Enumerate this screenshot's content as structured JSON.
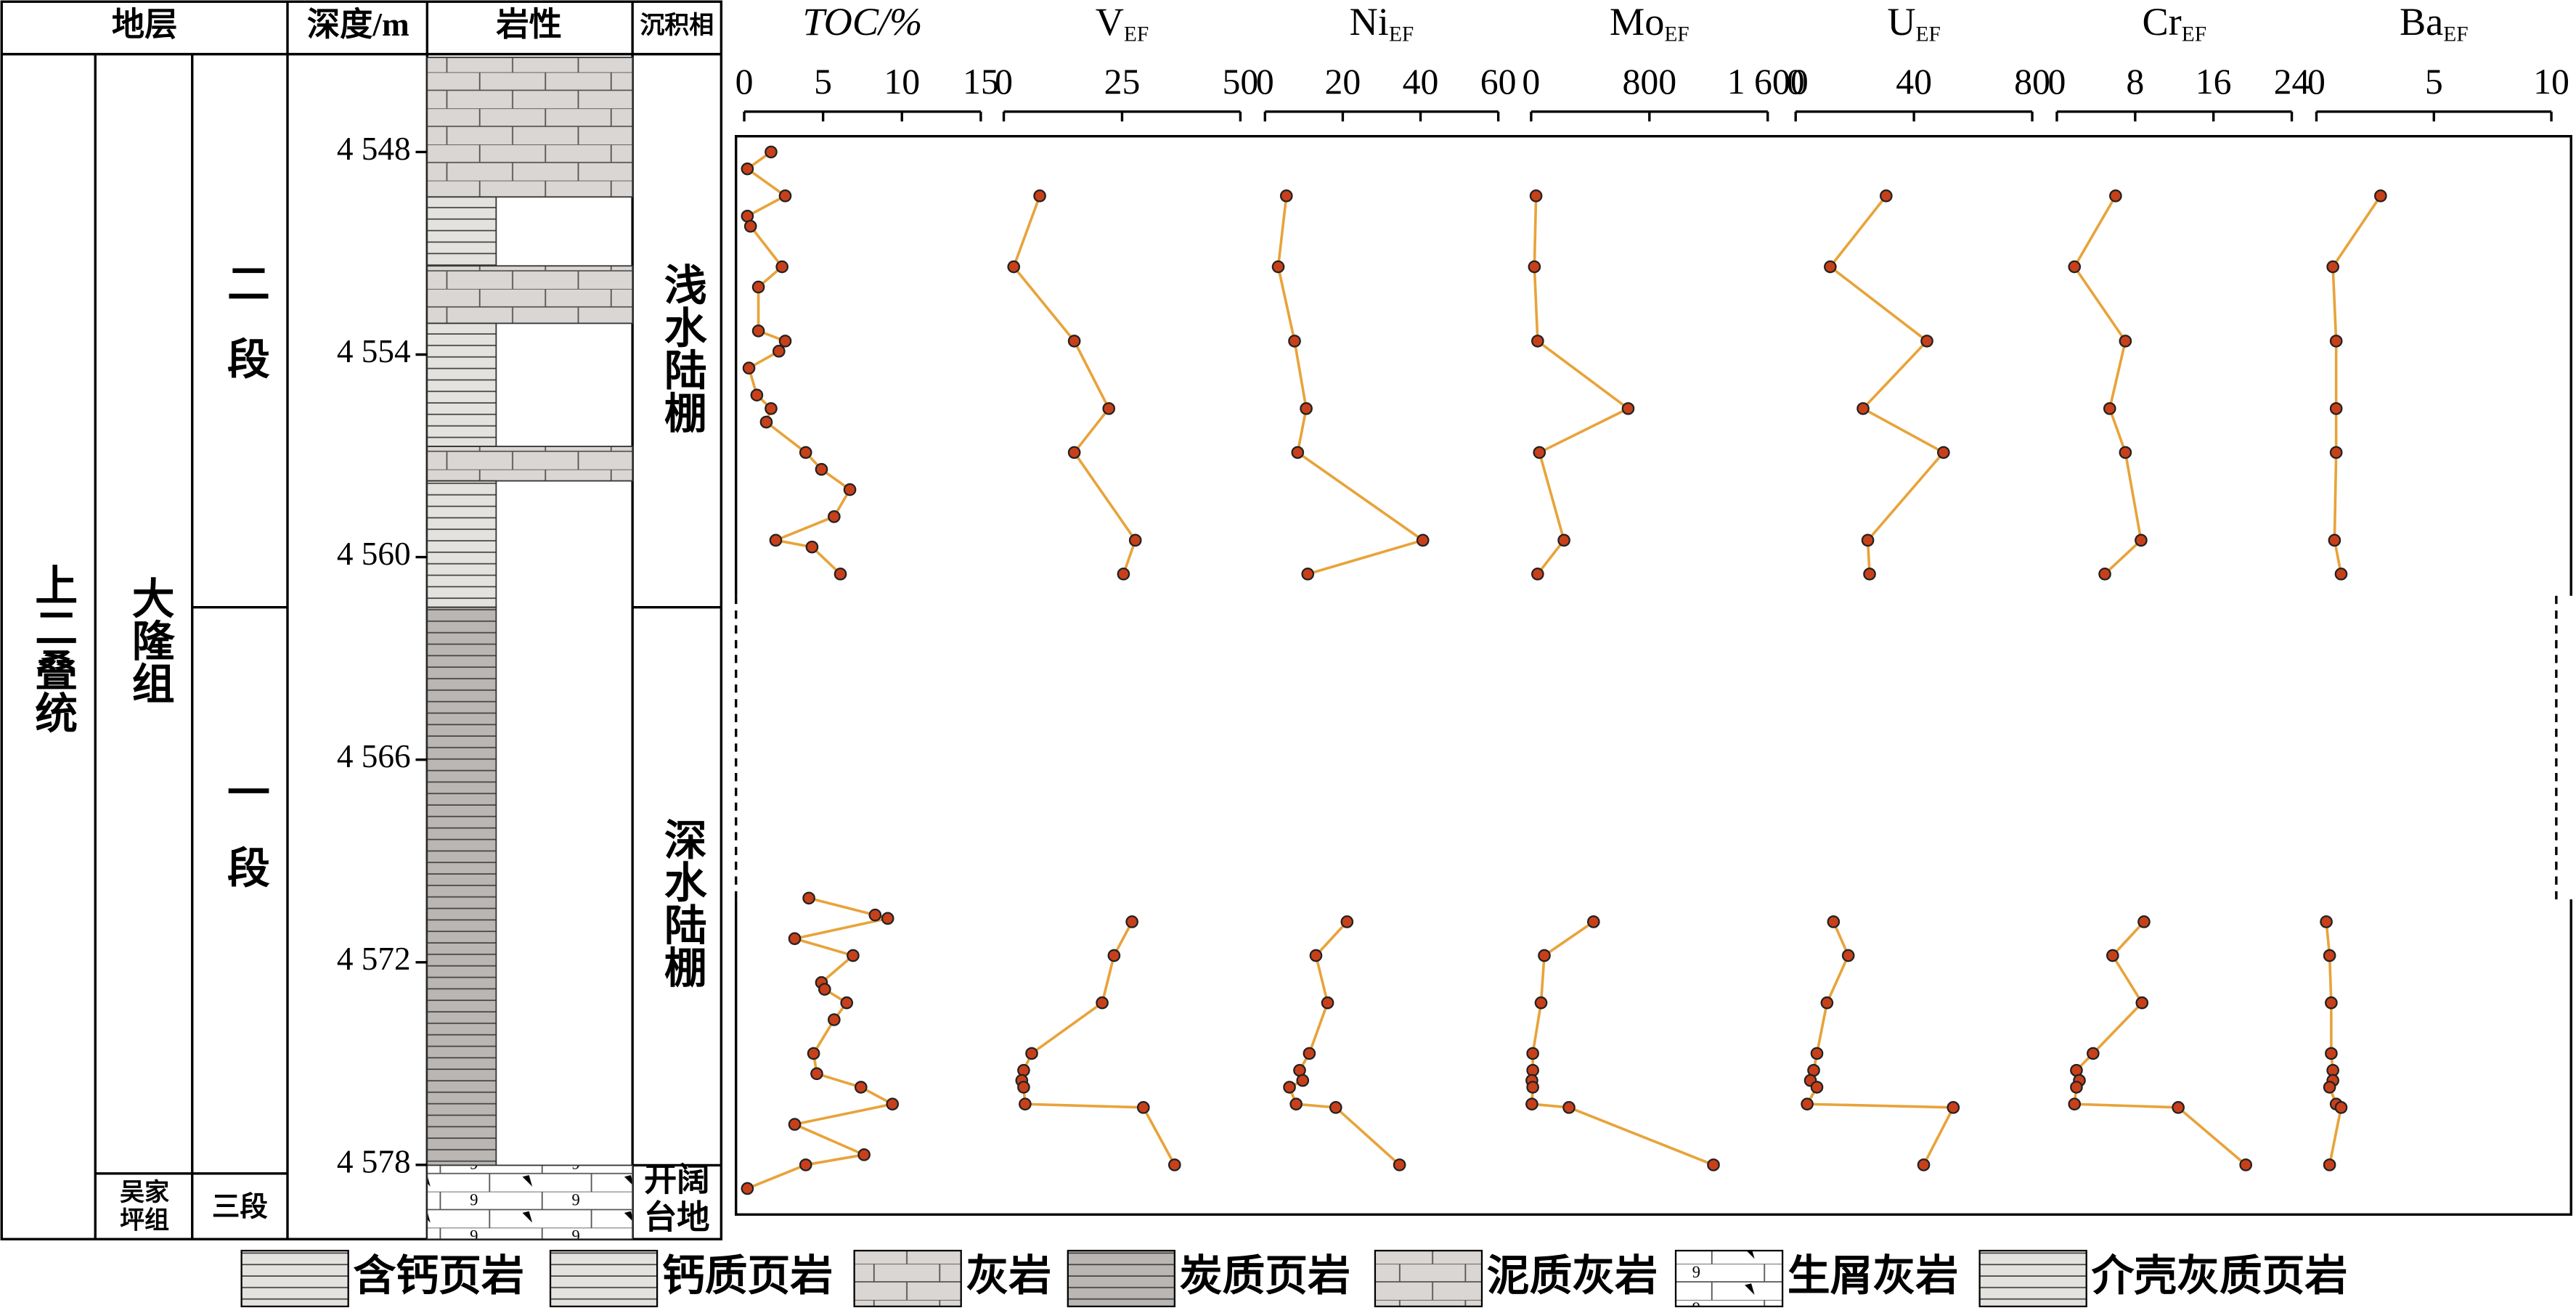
{
  "column": {
    "headers": [
      "地层",
      "深度/m",
      "岩性",
      "沉积相"
    ],
    "system": "上二叠统",
    "formation": "大隆组",
    "formation_lower": [
      "吴家",
      "坪组"
    ],
    "members": [
      "二段",
      "一段",
      "三段"
    ],
    "facies": [
      "浅水陆棚",
      "深水陆棚"
    ],
    "facies_lower": [
      "开阔",
      "台地"
    ]
  },
  "legend": [
    "含钙页岩",
    "钙质页岩",
    "灰岩",
    "炭质页岩",
    "泥质灰岩",
    "生屑灰岩",
    "介壳灰质页岩"
  ],
  "chart_data": {
    "type": "line",
    "color": "#e8a33a",
    "marker_color": "#c8401a",
    "ylim": [
      4545.2,
      4580.2
    ],
    "yticks": [
      {
        "value": 4548,
        "label": "4 548"
      },
      {
        "value": 4554,
        "label": "4 554"
      },
      {
        "value": 4560,
        "label": "4 560"
      },
      {
        "value": 4566,
        "label": "4 566"
      },
      {
        "value": 4572,
        "label": "4 572"
      },
      {
        "value": 4578,
        "label": "4 578"
      }
    ],
    "series": [
      {
        "name": "TOC/%",
        "xlim": [
          0,
          15
        ],
        "xticks": [
          0,
          5,
          10,
          15
        ],
        "depths": [
          4548.0,
          4548.5,
          4549.3,
          4549.9,
          4550.2,
          4551.4,
          4552.0,
          4553.3,
          4553.6,
          4553.9,
          4554.4,
          4555.2,
          4555.6,
          4556.0,
          4556.9,
          4557.4,
          4558.0,
          4558.8,
          4559.5,
          4559.7,
          4560.5,
          null,
          4570.1,
          4570.6,
          4570.7,
          4571.3,
          4571.8,
          4572.6,
          4572.8,
          4573.2,
          4573.7,
          4574.7,
          4575.3,
          4575.7,
          4576.2,
          4576.8,
          4577.7,
          4578.0,
          4578.7
        ],
        "values": [
          1.7,
          0.2,
          2.6,
          0.2,
          0.4,
          2.4,
          0.9,
          0.9,
          2.6,
          2.2,
          0.3,
          0.8,
          1.7,
          1.4,
          3.9,
          4.9,
          6.7,
          5.7,
          2.0,
          4.3,
          6.1,
          null,
          4.1,
          8.3,
          9.1,
          3.2,
          6.9,
          4.9,
          5.1,
          6.5,
          5.7,
          4.4,
          4.6,
          7.4,
          9.4,
          3.2,
          7.6,
          3.9,
          0.2
        ]
      },
      {
        "name": "V",
        "name_sub": "EF",
        "xlim": [
          0,
          50
        ],
        "xticks": [
          0,
          25,
          50
        ],
        "depths": [
          4549.3,
          4551.4,
          4553.6,
          4555.6,
          4556.9,
          4559.5,
          4560.5,
          null,
          4570.8,
          4571.8,
          4573.2,
          4574.7,
          4575.2,
          4575.5,
          4575.7,
          4576.2,
          4576.3,
          4578.0
        ],
        "values": [
          7.6,
          2.1,
          14.9,
          22.2,
          14.9,
          27.8,
          25.3,
          null,
          27.1,
          23.3,
          20.8,
          5.9,
          4.2,
          3.8,
          4.2,
          4.5,
          29.5,
          36.1
        ]
      },
      {
        "name": "Ni",
        "name_sub": "EF",
        "xlim": [
          0,
          60
        ],
        "xticks": [
          0,
          20,
          40,
          60
        ],
        "depths": [
          4549.3,
          4551.4,
          4553.6,
          4555.6,
          4556.9,
          4559.5,
          4560.5,
          null,
          4570.8,
          4571.8,
          4573.2,
          4574.7,
          4575.2,
          4575.5,
          4575.7,
          4576.2,
          4576.3,
          4578.0
        ],
        "values": [
          5.5,
          3.4,
          7.6,
          10.6,
          8.4,
          40.6,
          11.0,
          null,
          21.1,
          13.1,
          16.1,
          11.4,
          8.9,
          9.7,
          6.3,
          8.0,
          18.2,
          34.6
        ]
      },
      {
        "name": "Mo",
        "name_sub": "EF",
        "xlim": [
          0,
          1600
        ],
        "xticks": [
          0,
          800,
          {
            "value": 1600,
            "label": "1 600"
          }
        ],
        "depths": [
          4549.3,
          4551.4,
          4553.6,
          4555.6,
          4556.9,
          4559.5,
          4560.5,
          null,
          4570.8,
          4571.8,
          4573.2,
          4574.7,
          4575.2,
          4575.5,
          4575.7,
          4576.2,
          4576.3,
          4578.0
        ],
        "values": [
          33,
          22,
          44,
          656,
          56,
          222,
          44,
          null,
          422,
          89,
          67,
          11,
          11,
          5,
          11,
          5,
          256,
          1233
        ]
      },
      {
        "name": "U",
        "name_sub": "EF",
        "xlim": [
          0,
          80
        ],
        "xticks": [
          0,
          40,
          80
        ],
        "depths": [
          4549.3,
          4551.4,
          4553.6,
          4555.6,
          4556.9,
          4559.5,
          4560.5,
          null,
          4570.8,
          4571.8,
          4573.2,
          4574.7,
          4575.2,
          4575.5,
          4575.7,
          4576.2,
          4576.3,
          4578.0
        ],
        "values": [
          30.6,
          11.7,
          44.4,
          22.8,
          50.0,
          24.4,
          25.0,
          null,
          12.8,
          17.8,
          10.6,
          7.2,
          6.1,
          5.0,
          7.2,
          3.9,
          53.3,
          43.3
        ]
      },
      {
        "name": "Cr",
        "name_sub": "EF",
        "xlim": [
          0,
          24
        ],
        "xticks": [
          0,
          8,
          16,
          24
        ],
        "depths": [
          4549.3,
          4551.4,
          4553.6,
          4555.6,
          4556.9,
          4559.5,
          4560.5,
          null,
          4570.8,
          4571.8,
          4573.2,
          4574.7,
          4575.2,
          4575.5,
          4575.7,
          4576.2,
          4576.3,
          4578.0
        ],
        "values": [
          6.0,
          1.8,
          7.0,
          5.4,
          7.0,
          8.6,
          4.9,
          null,
          8.9,
          5.7,
          8.7,
          3.7,
          2.0,
          2.3,
          2.0,
          1.8,
          12.4,
          19.3
        ]
      },
      {
        "name": "Ba",
        "name_sub": "EF",
        "xlim": [
          0,
          10
        ],
        "xticks": [
          0,
          5,
          10
        ],
        "depths": [
          4549.3,
          4551.4,
          4553.6,
          4555.6,
          4556.9,
          4559.5,
          4560.5,
          null,
          4570.8,
          4571.8,
          4573.2,
          4574.7,
          4575.2,
          4575.5,
          4575.7,
          4576.2,
          4576.3,
          4578.0
        ],
        "values": [
          2.73,
          0.7,
          0.84,
          0.84,
          0.84,
          0.77,
          1.05,
          null,
          0.42,
          0.56,
          0.63,
          0.63,
          0.7,
          0.7,
          0.56,
          0.84,
          1.05,
          0.56
        ]
      }
    ]
  }
}
